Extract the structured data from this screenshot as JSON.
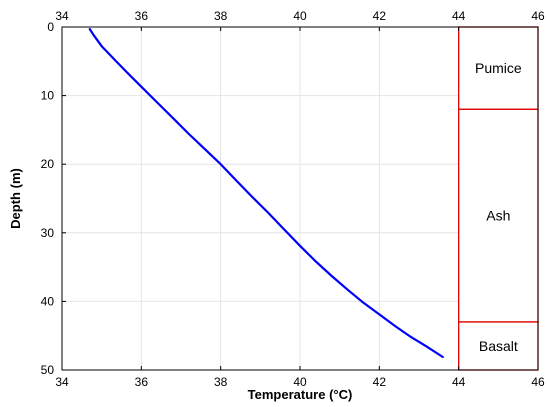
{
  "chart_data": {
    "type": "line",
    "xlabel": "Temperature (°C)",
    "ylabel": "Depth (m)",
    "xlim": [
      34,
      46
    ],
    "ylim": [
      0,
      50
    ],
    "y_inverted": true,
    "x_ticks": [
      "34",
      "36",
      "38",
      "40",
      "42",
      "44",
      "46"
    ],
    "y_ticks": [
      "0",
      "10",
      "20",
      "30",
      "40",
      "50"
    ],
    "x_tick_positions": "bottom and top",
    "grid": true,
    "series": [
      {
        "color": "#0000ff",
        "x": [
          34.7,
          34.8,
          35.0,
          35.3,
          35.6,
          36.0,
          36.4,
          36.8,
          37.2,
          37.6,
          38.0,
          38.4,
          38.8,
          39.2,
          39.6,
          40.0,
          40.4,
          40.8,
          41.2,
          41.6,
          42.0,
          42.4,
          42.8,
          43.2,
          43.6
        ],
        "y": [
          0.3,
          1.2,
          2.8,
          4.6,
          6.4,
          8.7,
          11.0,
          13.3,
          15.6,
          17.8,
          20.0,
          22.4,
          24.8,
          27.1,
          29.5,
          31.9,
          34.2,
          36.3,
          38.3,
          40.2,
          41.9,
          43.6,
          45.2,
          46.6,
          48.1
        ]
      }
    ],
    "layers": [
      {
        "label": "Pumice",
        "top": 0,
        "bottom": 12
      },
      {
        "label": "Ash",
        "top": 12,
        "bottom": 43
      },
      {
        "label": "Basalt",
        "top": 43,
        "bottom": 50
      }
    ],
    "layer_x_range": [
      44,
      46
    ],
    "layer_color": "#e00000"
  }
}
